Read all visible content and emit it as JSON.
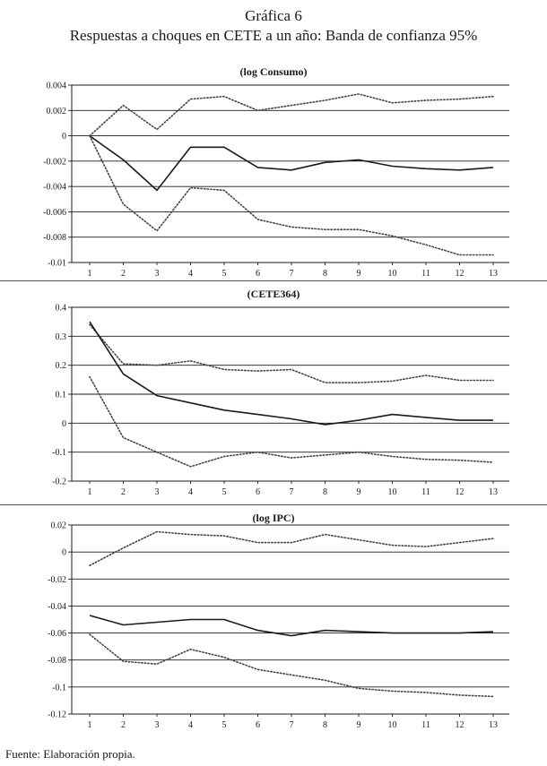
{
  "figure": {
    "title": "Gráfica 6",
    "subtitle": "Respuestas a choques en CETE a un año: Banda de confianza 95%",
    "source": "Fuente: Elaboración propia."
  },
  "chart_data": [
    {
      "type": "line",
      "title": "(log Consumo)",
      "categories": [
        "1",
        "2",
        "3",
        "4",
        "5",
        "6",
        "7",
        "8",
        "9",
        "10",
        "11",
        "12",
        "13"
      ],
      "ylim": [
        -0.01,
        0.004
      ],
      "yticks": [
        0.004,
        0.002,
        0,
        -0.002,
        -0.004,
        -0.006,
        -0.008,
        -0.01
      ],
      "ytick_labels": [
        "0.004",
        "0.002",
        "0",
        "-0.002",
        "-0.004",
        "-0.006",
        "-0.008",
        "-0.01"
      ],
      "grid": true,
      "series": [
        {
          "name": "upper",
          "style": "dotted",
          "values": [
            0,
            0.0024,
            0.0005,
            0.0029,
            0.0031,
            0.002,
            0.0024,
            0.0028,
            0.0033,
            0.0026,
            0.0028,
            0.0029,
            0.0031
          ]
        },
        {
          "name": "response",
          "style": "solid",
          "values": [
            0,
            -0.0019,
            -0.0043,
            -0.0009,
            -0.0009,
            -0.0025,
            -0.0027,
            -0.0021,
            -0.0019,
            -0.0024,
            -0.0026,
            -0.0027,
            -0.0025
          ]
        },
        {
          "name": "lower",
          "style": "dotted",
          "values": [
            0,
            -0.0054,
            -0.0075,
            -0.0041,
            -0.0043,
            -0.0066,
            -0.0072,
            -0.0074,
            -0.0074,
            -0.0079,
            -0.0086,
            -0.0094,
            -0.0094
          ]
        }
      ]
    },
    {
      "type": "line",
      "title": "(CETE364)",
      "categories": [
        "1",
        "2",
        "3",
        "4",
        "5",
        "6",
        "7",
        "8",
        "9",
        "10",
        "11",
        "12",
        "13"
      ],
      "ylim": [
        -0.2,
        0.4
      ],
      "yticks": [
        0.4,
        0.3,
        0.2,
        0.1,
        0,
        -0.1,
        -0.2
      ],
      "ytick_labels": [
        "0.4",
        "0.3",
        "0.2",
        "0.1",
        "0",
        "-0.1",
        "-0.2"
      ],
      "grid": true,
      "series": [
        {
          "name": "upper",
          "style": "dotted",
          "values": [
            0.34,
            0.205,
            0.2,
            0.215,
            0.185,
            0.18,
            0.185,
            0.14,
            0.14,
            0.145,
            0.165,
            0.148,
            0.148
          ]
        },
        {
          "name": "response",
          "style": "solid",
          "values": [
            0.35,
            0.17,
            0.095,
            0.07,
            0.045,
            0.03,
            0.015,
            -0.005,
            0.01,
            0.03,
            0.02,
            0.01,
            0.01
          ]
        },
        {
          "name": "lower",
          "style": "dotted",
          "values": [
            0.16,
            -0.05,
            -0.1,
            -0.15,
            -0.115,
            -0.1,
            -0.12,
            -0.11,
            -0.1,
            -0.115,
            -0.125,
            -0.128,
            -0.135
          ]
        }
      ]
    },
    {
      "type": "line",
      "title": "(log IPC)",
      "categories": [
        "1",
        "2",
        "3",
        "4",
        "5",
        "6",
        "7",
        "8",
        "9",
        "10",
        "11",
        "12",
        "13"
      ],
      "ylim": [
        -0.12,
        0.02
      ],
      "yticks": [
        0.02,
        0,
        -0.02,
        -0.04,
        -0.06,
        -0.08,
        -0.1,
        -0.12
      ],
      "ytick_labels": [
        "0.02",
        "0",
        "-0.02",
        "-0.04",
        "-0.06",
        "-0.08",
        "-0.1",
        "-0.12"
      ],
      "grid": true,
      "series": [
        {
          "name": "upper",
          "style": "dotted",
          "values": [
            -0.01,
            0.003,
            0.015,
            0.013,
            0.012,
            0.007,
            0.007,
            0.013,
            0.009,
            0.005,
            0.004,
            0.007,
            0.01
          ]
        },
        {
          "name": "response",
          "style": "solid",
          "values": [
            -0.047,
            -0.054,
            -0.052,
            -0.05,
            -0.05,
            -0.058,
            -0.062,
            -0.058,
            -0.059,
            -0.06,
            -0.06,
            -0.06,
            -0.059
          ]
        },
        {
          "name": "lower",
          "style": "dotted",
          "values": [
            -0.061,
            -0.081,
            -0.083,
            -0.072,
            -0.078,
            -0.087,
            -0.091,
            -0.095,
            -0.101,
            -0.103,
            -0.104,
            -0.106,
            -0.107
          ]
        }
      ]
    }
  ]
}
